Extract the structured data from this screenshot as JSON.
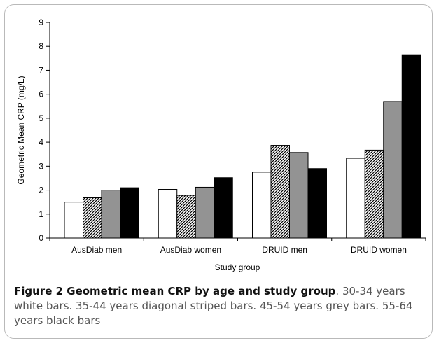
{
  "chart_data": {
    "type": "bar",
    "categories": [
      "AusDiab men",
      "AusDiab women",
      "DRUID men",
      "DRUID women"
    ],
    "series": [
      {
        "name": "30-34 years",
        "style": "white",
        "values": [
          1.5,
          2.03,
          2.75,
          3.33
        ]
      },
      {
        "name": "35-44 years",
        "style": "diagonal-striped",
        "values": [
          1.68,
          1.78,
          3.87,
          3.67
        ]
      },
      {
        "name": "45-54 years",
        "style": "grey",
        "values": [
          2.0,
          2.12,
          3.57,
          5.7
        ]
      },
      {
        "name": "55-64 years",
        "style": "black",
        "values": [
          2.1,
          2.52,
          2.9,
          7.65
        ]
      }
    ],
    "ylabel": "Geometric Mean CRP (mg/L)",
    "xlabel": "Study group",
    "ylim": [
      0,
      9
    ],
    "yticks": [
      "0",
      "1",
      "2",
      "3",
      "4",
      "5",
      "6",
      "7",
      "8",
      "9"
    ],
    "grid": false,
    "legend": "none"
  },
  "caption": {
    "title": "Figure 2 Geometric mean CRP by age and study group",
    "text": ". 30-34 years white bars. 35-44 years diagonal striped bars. 45-54 years grey bars. 55-64 years black bars"
  },
  "colors": {
    "grey_bar": "#939393",
    "black_bar": "#000000",
    "white_bar": "#ffffff",
    "frame": "#b9b9b9"
  }
}
